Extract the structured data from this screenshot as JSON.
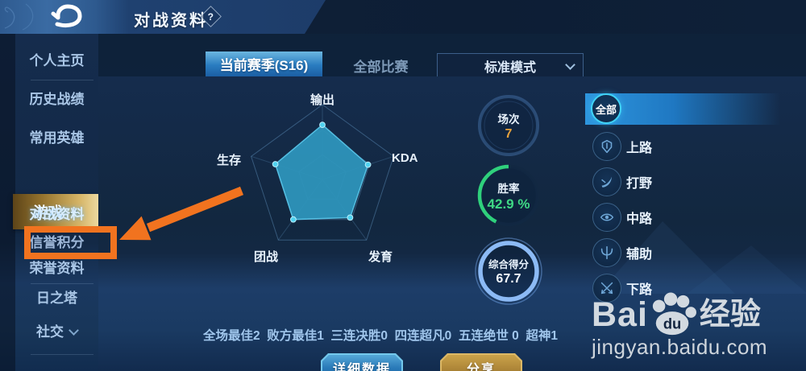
{
  "header": {
    "title": "对战资料",
    "help": "?"
  },
  "sidebar": {
    "items": [
      {
        "label": "个人主页"
      },
      {
        "label": "历史战绩"
      },
      {
        "label": "常用英雄"
      },
      {
        "label": "游戏"
      },
      {
        "label": "对战资料"
      },
      {
        "label": "信誉积分"
      },
      {
        "label": "荣誉资料"
      },
      {
        "label": "日之塔"
      },
      {
        "label": "社交"
      }
    ]
  },
  "tabs": {
    "active": "当前赛季(S16)",
    "inactive": "全部比赛"
  },
  "mode_select": {
    "value": "标准模式"
  },
  "radar": {
    "axes": [
      "输出",
      "KDA",
      "发育",
      "团战",
      "生存"
    ],
    "values": [
      73,
      64,
      63,
      66,
      66
    ]
  },
  "chart_data": {
    "type": "radar",
    "categories": [
      "输出",
      "KDA",
      "发育",
      "团战",
      "生存"
    ],
    "values": [
      73,
      64,
      63,
      66,
      66
    ],
    "title": "",
    "ylim": [
      0,
      100
    ],
    "grid": "pentagon rings at 33/66/100"
  },
  "buttons": {
    "detail": "详细数据",
    "share": "分享"
  },
  "circles": [
    {
      "label": "场次",
      "value": "7"
    },
    {
      "label": "胜率",
      "value": "42.9 %",
      "percent": 42.9
    },
    {
      "label": "综合得分",
      "value": "67.7"
    }
  ],
  "lanes": {
    "selected": "全部",
    "items": [
      {
        "label": "上路"
      },
      {
        "label": "打野"
      },
      {
        "label": "中路"
      },
      {
        "label": "辅助"
      },
      {
        "label": "下路"
      }
    ]
  },
  "bottom_stats": [
    {
      "label": "全场最佳2"
    },
    {
      "label": "败方最佳1"
    },
    {
      "label": "三连决胜0"
    },
    {
      "label": "四连超凡0"
    },
    {
      "label": "五连绝世 0"
    },
    {
      "label": "超神1"
    }
  ],
  "watermark": {
    "bai": "Bai",
    "du": "du",
    "brand": "经验",
    "url": "jingyan.baidu.com"
  },
  "annotation": {
    "target": "信誉积分",
    "color": "#f1731f"
  },
  "colors": {
    "radar_fill": "#2e93b9",
    "win_green": "#3fd985",
    "score_ring_blue": "#8cbaf5",
    "games_value_orange": "#e8a23c",
    "gold_row": "#d6b567",
    "annotation_orange": "#f1731f"
  }
}
